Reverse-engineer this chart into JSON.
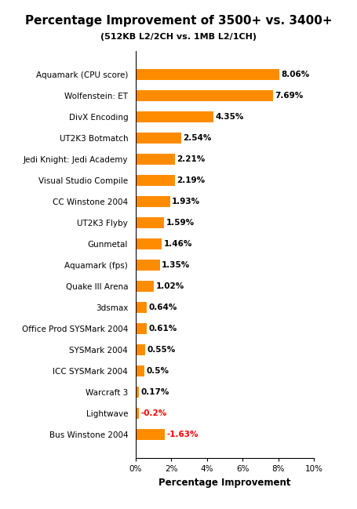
{
  "title": "Percentage Improvement of 3500+ vs. 3400+",
  "subtitle": "(512KB L2/2CH vs. 1MB L2/1CH)",
  "categories": [
    "Aquamark (CPU score)",
    "Wolfenstein: ET",
    "DivX Encoding",
    "UT2K3 Botmatch",
    "Jedi Knight: Jedi Academy",
    "Visual Studio Compile",
    "CC Winstone 2004",
    "UT2K3 Flyby",
    "Gunmetal",
    "Aquamark (fps)",
    "Quake III Arena",
    "3dsmax",
    "Office Prod SYSMark 2004",
    "SYSMark 2004",
    "ICC SYSMark 2004",
    "Warcraft 3",
    "Lightwave",
    "Bus Winstone 2004"
  ],
  "values": [
    8.06,
    7.69,
    4.35,
    2.54,
    2.21,
    2.19,
    1.93,
    1.59,
    1.46,
    1.35,
    1.02,
    0.64,
    0.61,
    0.55,
    0.5,
    0.17,
    -0.2,
    -1.63
  ],
  "bar_values": [
    8.06,
    7.69,
    4.35,
    2.54,
    2.21,
    2.19,
    1.93,
    1.59,
    1.46,
    1.35,
    1.02,
    0.64,
    0.61,
    0.55,
    0.5,
    0.17,
    0.2,
    1.63
  ],
  "bar_color": "#FF8C00",
  "label_color_positive": "#000000",
  "label_color_negative": "#FF0000",
  "xlabel": "Percentage Improvement",
  "xlim": [
    0,
    10
  ],
  "xticks": [
    0,
    2,
    4,
    6,
    8,
    10
  ],
  "xticklabels": [
    "0%",
    "2%",
    "4%",
    "6%",
    "8%",
    "10%"
  ],
  "background_color": "#ffffff",
  "title_fontsize": 11,
  "subtitle_fontsize": 8,
  "label_fontsize": 7.5,
  "tick_fontsize": 7.5,
  "xlabel_fontsize": 8.5
}
